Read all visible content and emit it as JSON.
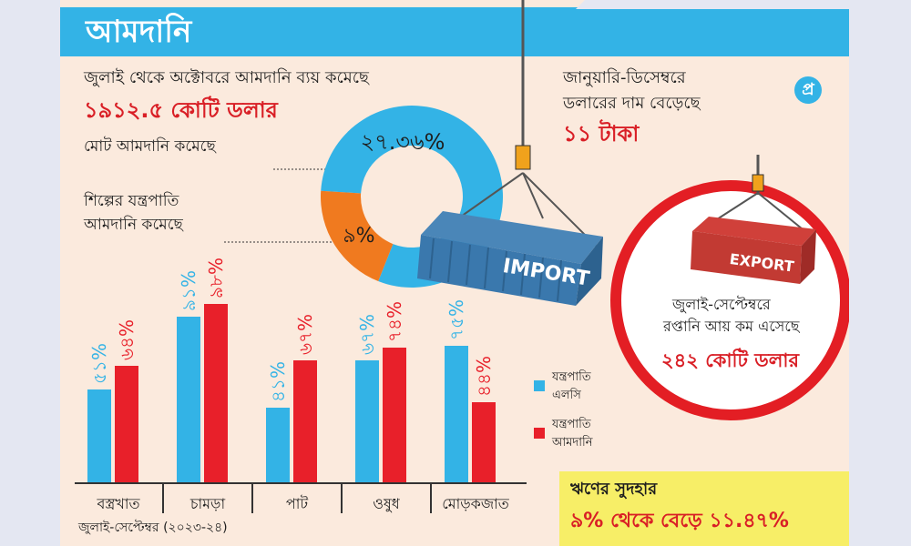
{
  "header": {
    "title": "আমদানি"
  },
  "logo": {
    "icon": "prothom-alo-logo-icon",
    "text": "প্র"
  },
  "import_decline": {
    "line1": "জুলাই থেকে অক্টোবরে আমদানি ব্যয় কমেছে",
    "amount": "১৯১২.৫ কোটি ডলার"
  },
  "dollar_rise": {
    "line1": "জানুয়ারি-ডিসেম্বরে",
    "line2": "ডলারের দাম বেড়েছে",
    "amount": "১১ টাকা"
  },
  "donut": {
    "total_label": "মোট আমদানি কমেছে",
    "total_value": "২৭.৩৬%",
    "machinery_label_1": "শিল্পের যন্ত্রপাতি",
    "machinery_label_2": "আমদানি কমেছে",
    "machinery_value": "৯%"
  },
  "import_container": {
    "label": "IMPORT"
  },
  "export_container": {
    "label": "EXPORT"
  },
  "export_note": {
    "line1": "জুলাই-সেপ্টেম্বরে",
    "line2": "রপ্তানি আয় কম এসেছে",
    "amount": "২৪২ কোটি ডলার"
  },
  "interest": {
    "line1": "ঋণের সুদহার",
    "line2": "৯% থেকে বেড়ে ১১.৪৭%"
  },
  "colors": {
    "blue": "#33b3e6",
    "red": "#e8202a",
    "orange": "#f07a1f",
    "yellow": "#f7ee67"
  },
  "chart_data": [
    {
      "type": "pie",
      "title": "",
      "slices": [
        {
          "label": "মোট আমদানি কমেছে",
          "value": 27.36,
          "value_label": "২৭.৩৬%"
        },
        {
          "label": "শিল্পের যন্ত্রপাতি আমদানি কমেছে",
          "value": 9,
          "value_label": "৯%"
        }
      ]
    },
    {
      "type": "bar",
      "categories": [
        "বস্ত্রখাত",
        "চামড়া",
        "পাট",
        "ওষুধ",
        "মোড়কজাত"
      ],
      "series": [
        {
          "name": "যন্ত্রপাতি এলসি",
          "values": [
            51,
            91,
            41,
            67,
            75
          ],
          "value_labels": [
            "৫১%",
            "৯১%",
            "৪১%",
            "৬৭%",
            "৭৫%"
          ]
        },
        {
          "name": "যন্ত্রপাতি আমদানি",
          "values": [
            64,
            98,
            67,
            74,
            44
          ],
          "value_labels": [
            "৬৪%",
            "৯৮%",
            "৬৭%",
            "৭৪%",
            "৪৪%"
          ]
        }
      ],
      "legend": [
        "যন্ত্রপাতি এলসি",
        "যন্ত্রপাতি আমদানি"
      ],
      "legend_labels": {
        "lc_line1": "যন্ত্রপাতি",
        "lc_line2": "এলসি",
        "import_line1": "যন্ত্রপাতি",
        "import_line2": "আমদানি"
      },
      "legend_position": "right",
      "footnote": "জুলাই-সেপ্টেম্বর (২০২৩-২৪)",
      "ylim": [
        0,
        100
      ]
    }
  ]
}
